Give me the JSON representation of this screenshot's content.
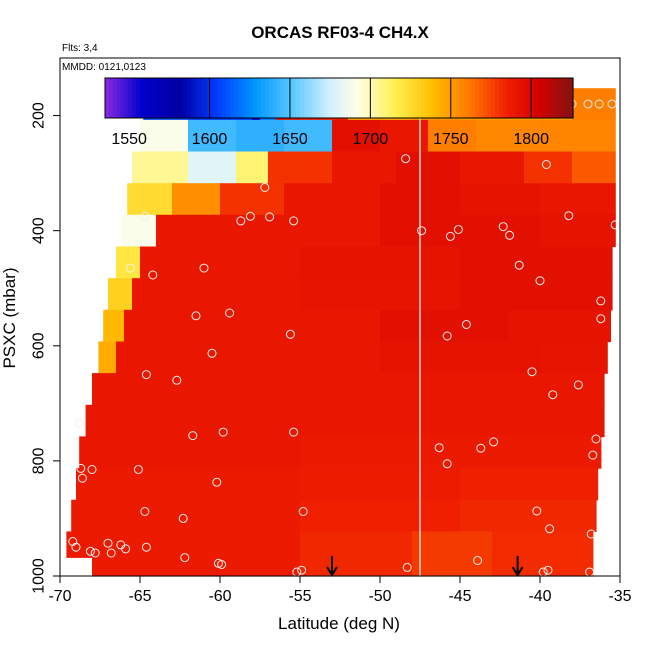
{
  "chart_data": {
    "type": "heatmap",
    "title": "ORCAS RF03-4 CH4.X",
    "flights_label": "Flts: 3,4",
    "date_label": "MMDD: 0121,0123",
    "xlabel": "Latitude (deg N)",
    "ylabel": "PSXC (mbar)",
    "xlim": [
      -70,
      -35
    ],
    "ylim": [
      1000,
      100
    ],
    "x_ticks": [
      -70,
      -65,
      -60,
      -55,
      -50,
      -45,
      -40,
      -35
    ],
    "x_tick_labels": [
      "-70",
      "-65",
      "-60",
      "-55",
      "-50",
      "-45",
      "-40",
      "-35"
    ],
    "y_ticks": [
      200,
      400,
      600,
      800,
      1000
    ],
    "y_tick_labels": [
      "200",
      "400",
      "600",
      "800",
      "1000"
    ],
    "colorbar": {
      "range": [
        1535,
        1826
      ],
      "ticks": [
        1550,
        1600,
        1650,
        1700,
        1750,
        1800
      ],
      "tick_labels": [
        "1550",
        "1600",
        "1650",
        "1700",
        "1750",
        "1800"
      ]
    },
    "vertical_line_lat": -47.5,
    "arrows_lat": [
      -53,
      -41.4
    ],
    "rows": [
      {
        "p": 180,
        "segs": [
          [
            -64.8,
            -62,
            1610
          ],
          [
            -62,
            -58,
            1605
          ],
          [
            -58,
            -57.5,
            1560
          ],
          [
            -57.5,
            -56.5,
            1620
          ],
          [
            -56.5,
            -55,
            1790
          ],
          [
            -55,
            -52,
            1785
          ],
          [
            -52,
            -48,
            1745
          ],
          [
            -48,
            -43,
            1750
          ],
          [
            -43,
            -38,
            1750
          ],
          [
            -38,
            -35.3,
            1760
          ]
        ]
      },
      {
        "p": 235,
        "segs": [
          [
            -65,
            -62,
            1690
          ],
          [
            -62,
            -59,
            1645
          ],
          [
            -59,
            -56,
            1640
          ],
          [
            -56,
            -53,
            1645
          ],
          [
            -53,
            -50,
            1795
          ],
          [
            -50,
            -47,
            1790
          ],
          [
            -47,
            -44,
            1760
          ],
          [
            -44,
            -40,
            1757
          ],
          [
            -40,
            -35.3,
            1758
          ]
        ]
      },
      {
        "p": 290,
        "segs": [
          [
            -65.5,
            -62,
            1705
          ],
          [
            -62,
            -59,
            1680
          ],
          [
            -59,
            -57,
            1710
          ],
          [
            -57,
            -53,
            1780
          ],
          [
            -53,
            -49,
            1790
          ],
          [
            -49,
            -45,
            1795
          ],
          [
            -45,
            -41,
            1790
          ],
          [
            -41,
            -38,
            1780
          ],
          [
            -38,
            -35.3,
            1770
          ]
        ]
      },
      {
        "p": 345,
        "segs": [
          [
            -65.8,
            -63,
            1725
          ],
          [
            -63,
            -60,
            1755
          ],
          [
            -60,
            -56,
            1780
          ],
          [
            -56,
            -50,
            1790
          ],
          [
            -50,
            -45,
            1795
          ],
          [
            -45,
            -40,
            1793
          ],
          [
            -40,
            -35.3,
            1790
          ]
        ]
      },
      {
        "p": 400,
        "segs": [
          [
            -66.2,
            -64,
            1690
          ],
          [
            -64,
            -60,
            1790
          ],
          [
            -60,
            -50,
            1790
          ],
          [
            -50,
            -45,
            1795
          ],
          [
            -45,
            -40,
            1795
          ],
          [
            -40,
            -35.3,
            1793
          ]
        ]
      },
      {
        "p": 455,
        "segs": [
          [
            -66.5,
            -65,
            1720
          ],
          [
            -65,
            -55,
            1790
          ],
          [
            -55,
            -45,
            1793
          ],
          [
            -45,
            -35.5,
            1795
          ]
        ]
      },
      {
        "p": 510,
        "segs": [
          [
            -67,
            -65.5,
            1730
          ],
          [
            -65.5,
            -55,
            1790
          ],
          [
            -55,
            -45,
            1792
          ],
          [
            -45,
            -35.5,
            1795
          ]
        ]
      },
      {
        "p": 565,
        "segs": [
          [
            -67.3,
            -66,
            1740
          ],
          [
            -66,
            -50,
            1790
          ],
          [
            -50,
            -42,
            1795
          ],
          [
            -42,
            -35.6,
            1793
          ]
        ]
      },
      {
        "p": 620,
        "segs": [
          [
            -67.6,
            -66.5,
            1745
          ],
          [
            -66.5,
            -50,
            1790
          ],
          [
            -50,
            -40,
            1793
          ],
          [
            -40,
            -35.8,
            1792
          ]
        ]
      },
      {
        "p": 675,
        "segs": [
          [
            -68,
            -60,
            1790
          ],
          [
            -60,
            -50,
            1790
          ],
          [
            -50,
            -36,
            1790
          ]
        ]
      },
      {
        "p": 730,
        "segs": [
          [
            -68.4,
            -60,
            1790
          ],
          [
            -60,
            -48,
            1790
          ],
          [
            -48,
            -36,
            1790
          ]
        ]
      },
      {
        "p": 785,
        "segs": [
          [
            -68.8,
            -55,
            1790
          ],
          [
            -55,
            -45,
            1788
          ],
          [
            -45,
            -36.2,
            1788
          ]
        ]
      },
      {
        "p": 840,
        "segs": [
          [
            -69,
            -55,
            1788
          ],
          [
            -55,
            -45,
            1787
          ],
          [
            -45,
            -36.4,
            1785
          ]
        ]
      },
      {
        "p": 895,
        "segs": [
          [
            -69.3,
            -55,
            1788
          ],
          [
            -55,
            -45,
            1785
          ],
          [
            -45,
            -36.5,
            1783
          ]
        ]
      },
      {
        "p": 950,
        "segs": [
          [
            -69.6,
            -55,
            1788
          ],
          [
            -55,
            -48,
            1783
          ],
          [
            -48,
            -43,
            1778
          ],
          [
            -43,
            -36.7,
            1782
          ]
        ]
      },
      {
        "p": 985,
        "segs": [
          [
            -68,
            -55,
            1788
          ],
          [
            -55,
            -48,
            1783
          ],
          [
            -48,
            -43,
            1778
          ],
          [
            -43,
            -36.7,
            1782
          ]
        ]
      }
    ],
    "points": [
      [
        -64.8,
        180
      ],
      [
        -64.2,
        180
      ],
      [
        -63.2,
        180
      ],
      [
        -61,
        180
      ],
      [
        -59.5,
        180
      ],
      [
        -57.3,
        180
      ],
      [
        -57,
        180
      ],
      [
        -56.5,
        180
      ],
      [
        -56,
        180
      ],
      [
        -55,
        180
      ],
      [
        -49,
        180
      ],
      [
        -48.3,
        180
      ],
      [
        -48,
        180
      ],
      [
        -47.6,
        180
      ],
      [
        -38.8,
        185
      ],
      [
        -38,
        180
      ],
      [
        -37,
        180
      ],
      [
        -36.3,
        180
      ],
      [
        -35.5,
        180
      ],
      [
        -48.4,
        275
      ],
      [
        -57.2,
        325
      ],
      [
        -39.6,
        285
      ],
      [
        -64.7,
        375
      ],
      [
        -58.7,
        383
      ],
      [
        -58.1,
        375
      ],
      [
        -56.9,
        376
      ],
      [
        -55.4,
        383
      ],
      [
        -47.4,
        400
      ],
      [
        -45.6,
        410
      ],
      [
        -45.1,
        398
      ],
      [
        -42.3,
        393
      ],
      [
        -41.9,
        408
      ],
      [
        -38.2,
        374
      ],
      [
        -35.3,
        390
      ],
      [
        -65.6,
        465
      ],
      [
        -64.2,
        477
      ],
      [
        -61,
        465
      ],
      [
        -41.3,
        460
      ],
      [
        -40,
        487
      ],
      [
        -36.2,
        522
      ],
      [
        -61.5,
        548
      ],
      [
        -59.4,
        543
      ],
      [
        -55.6,
        580
      ],
      [
        -45.8,
        583
      ],
      [
        -44.6,
        563
      ],
      [
        -36.2,
        553
      ],
      [
        -60.5,
        613
      ],
      [
        -64.6,
        650
      ],
      [
        -62.7,
        660
      ],
      [
        -40.5,
        645
      ],
      [
        -39.2,
        685
      ],
      [
        -37.6,
        668
      ],
      [
        -68.8,
        735
      ],
      [
        -61.7,
        756
      ],
      [
        -59.8,
        750
      ],
      [
        -55.4,
        750
      ],
      [
        -36.5,
        762
      ],
      [
        -68.7,
        813
      ],
      [
        -68.6,
        830
      ],
      [
        -68,
        815
      ],
      [
        -65.1,
        815
      ],
      [
        -60.2,
        837
      ],
      [
        -46.3,
        777
      ],
      [
        -45.8,
        805
      ],
      [
        -43.7,
        778
      ],
      [
        -42.9,
        767
      ],
      [
        -36.7,
        790
      ],
      [
        -64.7,
        888
      ],
      [
        -62.3,
        900
      ],
      [
        -54.8,
        888
      ],
      [
        -40.2,
        887
      ],
      [
        -39.4,
        918
      ],
      [
        -36.8,
        927
      ],
      [
        -69.2,
        940
      ],
      [
        -69,
        950
      ],
      [
        -68.1,
        957
      ],
      [
        -67.8,
        960
      ],
      [
        -67,
        943
      ],
      [
        -66.8,
        960
      ],
      [
        -66.2,
        946
      ],
      [
        -65.9,
        953
      ],
      [
        -64.6,
        950
      ],
      [
        -62.2,
        968
      ],
      [
        -60.1,
        978
      ],
      [
        -59.9,
        980
      ],
      [
        -55.2,
        993
      ],
      [
        -54.9,
        990
      ],
      [
        -48.3,
        985
      ],
      [
        -43.9,
        973
      ],
      [
        -39.8,
        993
      ],
      [
        -39.5,
        990
      ],
      [
        -36.9,
        993
      ]
    ]
  }
}
